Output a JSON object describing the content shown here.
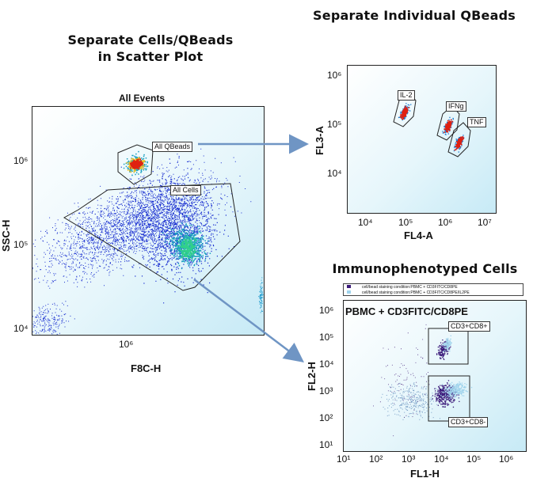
{
  "left": {
    "heading": "Separate Cells/QBeads\nin Scatter Plot",
    "plot_title": "All Events",
    "xlabel": "F8C-H",
    "ylabel": "SSC-H",
    "yticks": [
      "10⁶",
      "10⁵",
      "10⁴"
    ],
    "xticks": [
      "10⁶"
    ],
    "gates": [
      "All QBeads",
      "All Cells"
    ]
  },
  "top_right": {
    "heading": "Separate Individual QBeads",
    "xlabel": "FL4-A",
    "ylabel": "FL3-A",
    "yticks": [
      "10⁶",
      "10⁵",
      "10⁴"
    ],
    "xticks": [
      "10⁴",
      "10⁵",
      "10⁶",
      "10⁷"
    ],
    "gates": [
      "IL-2",
      "IFNg",
      "TNF"
    ]
  },
  "bottom_right": {
    "heading": "Immunophenotyped Cells",
    "plot_title": "PBMC + CD3FITC/CD8PE",
    "xlabel": "FL1-H",
    "ylabel": "FL2-H",
    "yticks": [
      "10⁶",
      "10⁵",
      "10⁴",
      "10³",
      "10²",
      "10¹"
    ],
    "xticks": [
      "10¹",
      "10²",
      "10³",
      "10⁴",
      "10⁵",
      "10⁶"
    ],
    "gates": [
      "CD3+CD8+",
      "CD3+CD8-"
    ],
    "legend": [
      {
        "label": "cell/bead staining condition:PBMC + CD3FITC/CD8PE",
        "color": "#3b1a7a"
      },
      {
        "label": "cell/bead staining condition:PBMC + CD3FITC/CD8PE/IL2PE",
        "color": "#9fd3ec"
      }
    ]
  },
  "colors": {
    "arrow": "#6f95c4",
    "events": "#1a2fd0"
  }
}
